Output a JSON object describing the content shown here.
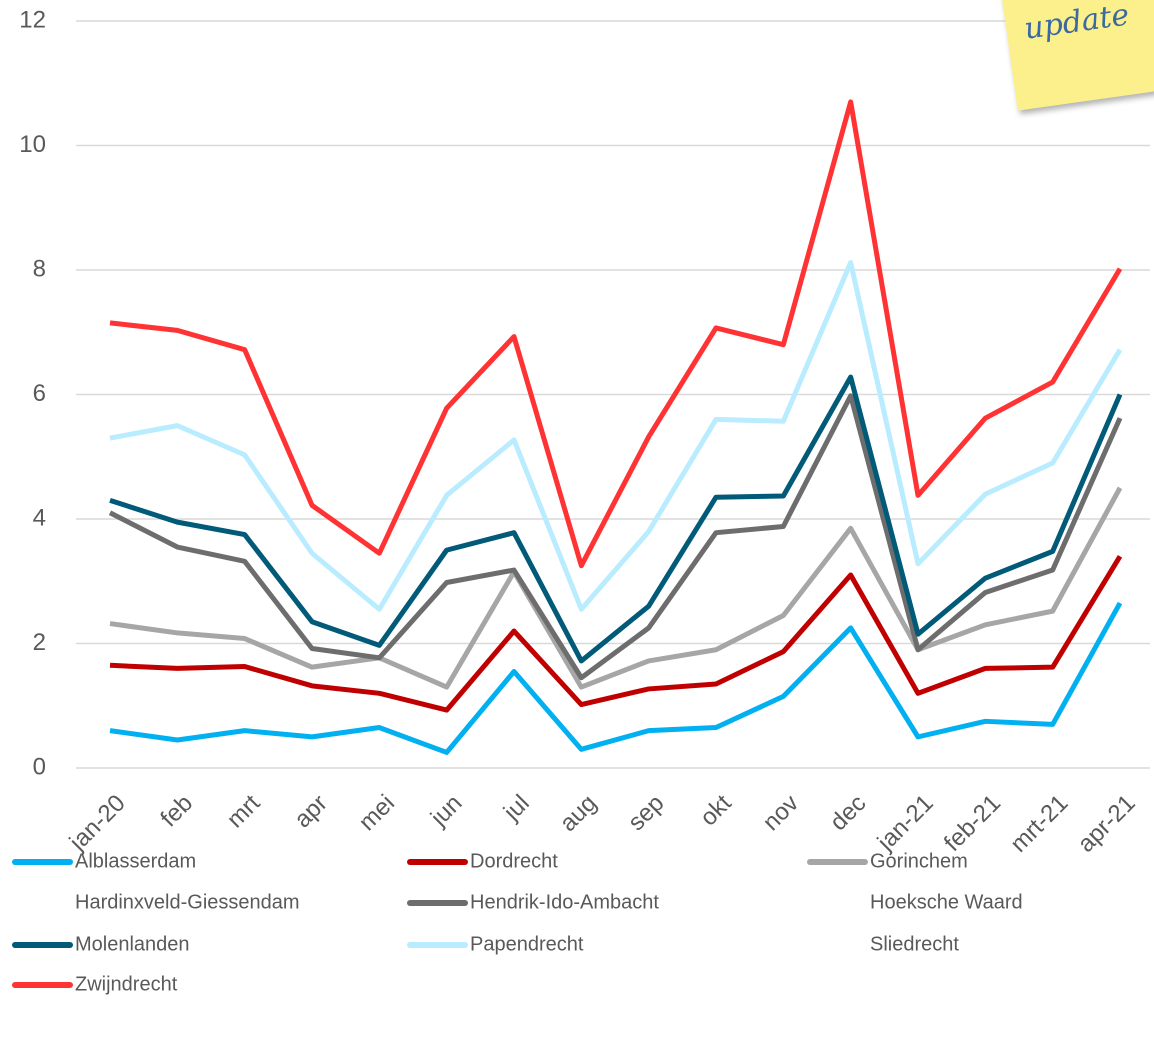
{
  "chart_data": {
    "type": "line",
    "annotation": "update",
    "categories": [
      "jan-20",
      "feb",
      "mrt",
      "apr",
      "mei",
      "jun",
      "jul",
      "aug",
      "sep",
      "okt",
      "nov",
      "dec",
      "jan-21",
      "feb-21",
      "mrt-21",
      "apr-21"
    ],
    "ylim": [
      0,
      12
    ],
    "yticks": [
      0,
      2,
      4,
      6,
      8,
      10,
      12
    ],
    "grid": true,
    "series": [
      {
        "name": "Alblasserdam",
        "color": "#00b0f0",
        "values": [
          0.6,
          0.45,
          0.6,
          0.5,
          0.65,
          0.25,
          1.55,
          0.3,
          0.6,
          0.65,
          1.15,
          2.25,
          0.5,
          0.75,
          0.7,
          2.65
        ]
      },
      {
        "name": "Dordrecht",
        "color": "#c00000",
        "values": [
          1.65,
          1.6,
          1.63,
          1.32,
          1.2,
          0.93,
          2.2,
          1.02,
          1.27,
          1.35,
          1.87,
          3.1,
          1.2,
          1.6,
          1.62,
          3.4
        ]
      },
      {
        "name": "Gorinchem",
        "color": "#a6a6a6",
        "values": [
          2.32,
          2.17,
          2.08,
          1.62,
          1.77,
          1.3,
          3.15,
          1.3,
          1.72,
          1.9,
          2.45,
          3.85,
          1.9,
          2.3,
          2.52,
          4.5
        ]
      },
      {
        "name": "Hardinxveld-Giessendam",
        "values": [
          null,
          null,
          null,
          null,
          null,
          null,
          null,
          null,
          null,
          null,
          null,
          null,
          null,
          null,
          null,
          null
        ]
      },
      {
        "name": "Hendrik-Ido-Ambacht",
        "color": "#6d6d6d",
        "values": [
          4.1,
          3.55,
          3.32,
          1.92,
          1.77,
          2.98,
          3.18,
          1.45,
          2.25,
          3.78,
          3.88,
          5.98,
          1.9,
          2.82,
          3.18,
          5.62
        ]
      },
      {
        "name": "Hoeksche Waard",
        "values": [
          null,
          null,
          null,
          null,
          null,
          null,
          null,
          null,
          null,
          null,
          null,
          null,
          null,
          null,
          null,
          null
        ]
      },
      {
        "name": "Molenlanden",
        "color": "#005a78",
        "values": [
          4.3,
          3.95,
          3.75,
          2.35,
          1.97,
          3.5,
          3.78,
          1.72,
          2.6,
          4.35,
          4.37,
          6.28,
          2.15,
          3.05,
          3.48,
          6.0
        ]
      },
      {
        "name": "Papendrecht",
        "color": "#b9ecff",
        "values": [
          5.3,
          5.5,
          5.03,
          3.45,
          2.55,
          4.38,
          5.27,
          2.55,
          3.8,
          5.6,
          5.57,
          8.12,
          3.28,
          4.4,
          4.9,
          6.72
        ]
      },
      {
        "name": "Sliedrecht",
        "values": [
          null,
          null,
          null,
          null,
          null,
          null,
          null,
          null,
          null,
          null,
          null,
          null,
          null,
          null,
          null,
          null
        ]
      },
      {
        "name": "Zwijndrecht",
        "color": "#ff3333",
        "values": [
          7.15,
          7.03,
          6.72,
          4.22,
          3.45,
          5.78,
          6.93,
          3.25,
          5.32,
          7.07,
          6.8,
          10.7,
          4.38,
          5.62,
          6.2,
          8.02
        ]
      }
    ]
  }
}
